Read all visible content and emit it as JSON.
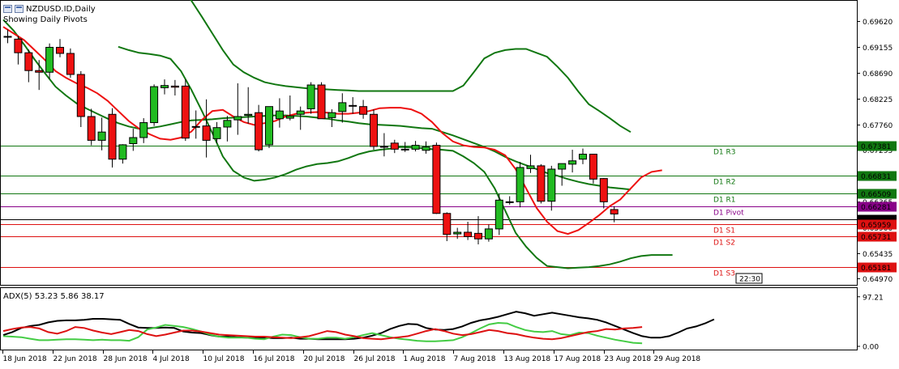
{
  "window": {
    "title": "NZDUSD.ID,Daily",
    "subtitle": "Showing Daily Pivots",
    "clock": "22:30"
  },
  "colors": {
    "bull": "#22bb22",
    "bear": "#ee1111",
    "candle_outline": "#000000",
    "bands": "#117711",
    "ma": "#ee1111",
    "resistance": "#117711",
    "support": "#dd1111",
    "pivot": "#880088",
    "adx": "#000000",
    "plus_di": "#44cc44",
    "minus_di": "#dd1111"
  },
  "chart_data": [
    {
      "type": "candlestick",
      "name": "NZDUSD.ID,Daily",
      "ylim": [
        0.6486,
        0.6999
      ],
      "y_ticks": [
        "0.69620",
        "0.69155",
        "0.68690",
        "0.68225",
        "0.67760",
        "0.67295",
        "0.66830",
        "0.66365",
        "0.65900",
        "0.65435",
        "0.64970"
      ],
      "x_ticks": [
        "18 Jun 2018",
        "22 Jun 2018",
        "28 Jun 2018",
        "4 Jul 2018",
        "10 Jul 2018",
        "16 Jul 2018",
        "20 Jul 2018",
        "26 Jul 2018",
        "1 Aug 2018",
        "7 Aug 2018",
        "13 Aug 2018",
        "17 Aug 2018",
        "23 Aug 2018",
        "29 Aug 2018"
      ],
      "candles": [
        {
          "o": 0.69347,
          "h": 0.6947,
          "l": 0.69225,
          "c": 0.69347
        },
        {
          "o": 0.69298,
          "h": 0.6936,
          "l": 0.6884,
          "c": 0.69052
        },
        {
          "o": 0.69052,
          "h": 0.6911,
          "l": 0.6852,
          "c": 0.6873
        },
        {
          "o": 0.6873,
          "h": 0.6892,
          "l": 0.6838,
          "c": 0.687
        },
        {
          "o": 0.687,
          "h": 0.6922,
          "l": 0.6858,
          "c": 0.6915
        },
        {
          "o": 0.6915,
          "h": 0.693,
          "l": 0.6897,
          "c": 0.6904
        },
        {
          "o": 0.6904,
          "h": 0.6913,
          "l": 0.686,
          "c": 0.6866
        },
        {
          "o": 0.6866,
          "h": 0.6872,
          "l": 0.6771,
          "c": 0.679
        },
        {
          "o": 0.679,
          "h": 0.6804,
          "l": 0.6738,
          "c": 0.6747
        },
        {
          "o": 0.6747,
          "h": 0.6788,
          "l": 0.6729,
          "c": 0.6762
        },
        {
          "o": 0.6794,
          "h": 0.6805,
          "l": 0.6698,
          "c": 0.6713
        },
        {
          "o": 0.6713,
          "h": 0.674,
          "l": 0.6705,
          "c": 0.6739
        },
        {
          "o": 0.6741,
          "h": 0.6768,
          "l": 0.6728,
          "c": 0.6752
        },
        {
          "o": 0.6752,
          "h": 0.6787,
          "l": 0.6742,
          "c": 0.6779
        },
        {
          "o": 0.6779,
          "h": 0.6848,
          "l": 0.6773,
          "c": 0.6844
        },
        {
          "o": 0.6842,
          "h": 0.6857,
          "l": 0.683,
          "c": 0.6846
        },
        {
          "o": 0.6845,
          "h": 0.6856,
          "l": 0.6828,
          "c": 0.6843
        },
        {
          "o": 0.6845,
          "h": 0.6857,
          "l": 0.6746,
          "c": 0.6751
        },
        {
          "o": 0.6772,
          "h": 0.6801,
          "l": 0.675,
          "c": 0.6772
        },
        {
          "o": 0.6773,
          "h": 0.6821,
          "l": 0.6716,
          "c": 0.6747
        },
        {
          "o": 0.675,
          "h": 0.678,
          "l": 0.6742,
          "c": 0.677
        },
        {
          "o": 0.6771,
          "h": 0.6791,
          "l": 0.6745,
          "c": 0.6783
        },
        {
          "o": 0.6784,
          "h": 0.685,
          "l": 0.6757,
          "c": 0.679
        },
        {
          "o": 0.6792,
          "h": 0.6843,
          "l": 0.6777,
          "c": 0.6794
        },
        {
          "o": 0.6797,
          "h": 0.6811,
          "l": 0.6727,
          "c": 0.673
        },
        {
          "o": 0.6739,
          "h": 0.6808,
          "l": 0.6733,
          "c": 0.6808
        },
        {
          "o": 0.6786,
          "h": 0.6823,
          "l": 0.677,
          "c": 0.68
        },
        {
          "o": 0.6787,
          "h": 0.6828,
          "l": 0.6783,
          "c": 0.6791
        },
        {
          "o": 0.6794,
          "h": 0.6808,
          "l": 0.6766,
          "c": 0.68
        },
        {
          "o": 0.6804,
          "h": 0.6852,
          "l": 0.6795,
          "c": 0.6847
        },
        {
          "o": 0.6847,
          "h": 0.6852,
          "l": 0.6786,
          "c": 0.6786
        },
        {
          "o": 0.6788,
          "h": 0.6803,
          "l": 0.6771,
          "c": 0.6797
        },
        {
          "o": 0.6799,
          "h": 0.6832,
          "l": 0.6779,
          "c": 0.6815
        },
        {
          "o": 0.681,
          "h": 0.6825,
          "l": 0.6795,
          "c": 0.6809
        },
        {
          "o": 0.6808,
          "h": 0.682,
          "l": 0.6786,
          "c": 0.6794
        },
        {
          "o": 0.6794,
          "h": 0.6803,
          "l": 0.673,
          "c": 0.6736
        },
        {
          "o": 0.6736,
          "h": 0.676,
          "l": 0.6718,
          "c": 0.6736
        },
        {
          "o": 0.6742,
          "h": 0.6748,
          "l": 0.6724,
          "c": 0.6731
        },
        {
          "o": 0.6731,
          "h": 0.6744,
          "l": 0.6726,
          "c": 0.6731
        },
        {
          "o": 0.6731,
          "h": 0.6746,
          "l": 0.6727,
          "c": 0.6738
        },
        {
          "o": 0.6729,
          "h": 0.6745,
          "l": 0.6723,
          "c": 0.6735
        },
        {
          "o": 0.6738,
          "h": 0.6743,
          "l": 0.6614,
          "c": 0.6615
        },
        {
          "o": 0.6615,
          "h": 0.6617,
          "l": 0.6565,
          "c": 0.6577
        },
        {
          "o": 0.6578,
          "h": 0.6589,
          "l": 0.6569,
          "c": 0.6581
        },
        {
          "o": 0.6581,
          "h": 0.66,
          "l": 0.6567,
          "c": 0.6573
        },
        {
          "o": 0.6579,
          "h": 0.661,
          "l": 0.6559,
          "c": 0.6569
        },
        {
          "o": 0.6569,
          "h": 0.6595,
          "l": 0.6564,
          "c": 0.6587
        },
        {
          "o": 0.6587,
          "h": 0.665,
          "l": 0.6576,
          "c": 0.6639
        },
        {
          "o": 0.6635,
          "h": 0.6646,
          "l": 0.6631,
          "c": 0.6636
        },
        {
          "o": 0.6636,
          "h": 0.6708,
          "l": 0.6626,
          "c": 0.6698
        },
        {
          "o": 0.6696,
          "h": 0.6721,
          "l": 0.6688,
          "c": 0.6701
        },
        {
          "o": 0.6701,
          "h": 0.6704,
          "l": 0.6633,
          "c": 0.6637
        },
        {
          "o": 0.6637,
          "h": 0.6701,
          "l": 0.662,
          "c": 0.6695
        },
        {
          "o": 0.6695,
          "h": 0.6705,
          "l": 0.6665,
          "c": 0.6705
        },
        {
          "o": 0.6704,
          "h": 0.673,
          "l": 0.6689,
          "c": 0.671
        },
        {
          "o": 0.6713,
          "h": 0.6732,
          "l": 0.6704,
          "c": 0.6722
        },
        {
          "o": 0.6722,
          "h": 0.672,
          "l": 0.6669,
          "c": 0.6677
        },
        {
          "o": 0.6678,
          "h": 0.6679,
          "l": 0.6624,
          "c": 0.6636
        },
        {
          "o": 0.6622,
          "h": 0.6628,
          "l": 0.6599,
          "c": 0.6614
        }
      ],
      "bands_upper": [
        0.703,
        0.703,
        0.703,
        0.703,
        0.703,
        0.703,
        0.703,
        0.703,
        0.703,
        0.703,
        0.703,
        0.703,
        0.703,
        0.703,
        0.703,
        0.703,
        0.703,
        0.703,
        0.6999,
        0.697,
        0.694,
        0.691,
        0.6884,
        0.687,
        0.686,
        0.6852,
        0.6848,
        0.6845,
        0.6843,
        0.6841,
        0.684,
        0.6839,
        0.6838,
        0.6837,
        0.6836,
        0.6836,
        0.6836,
        0.6836,
        0.6836,
        0.6836,
        0.6836,
        0.6836,
        0.6836,
        0.6836,
        0.6846,
        0.687,
        0.6895,
        0.6905,
        0.691,
        0.6912,
        0.6912,
        0.6905,
        0.6898,
        0.688,
        0.686,
        0.6835,
        0.6812,
        0.68,
        0.6787,
        0.6773,
        0.6762
      ],
      "bands_middle": [
        0.6965,
        0.6945,
        0.692,
        0.6893,
        0.6868,
        0.6844,
        0.6828,
        0.6814,
        0.6804,
        0.6795,
        0.6786,
        0.6778,
        0.6772,
        0.6768,
        0.6769,
        0.6772,
        0.6776,
        0.678,
        0.6783,
        0.6784,
        0.6785,
        0.6787,
        0.6788,
        0.6789,
        0.679,
        0.6791,
        0.6792,
        0.6792,
        0.6791,
        0.679,
        0.6788,
        0.6786,
        0.6783,
        0.6781,
        0.6778,
        0.6776,
        0.6775,
        0.6774,
        0.6773,
        0.6771,
        0.6769,
        0.6768,
        0.6762,
        0.6756,
        0.6749,
        0.6742,
        0.6735,
        0.6727,
        0.6717,
        0.6709,
        0.6702,
        0.6695,
        0.6688,
        0.6683,
        0.6677,
        0.6672,
        0.6668,
        0.6665,
        0.6662,
        0.666,
        0.6658
      ],
      "bands_lower": [
        0.6916,
        0.691,
        0.6905,
        0.6903,
        0.69,
        0.6894,
        0.6872,
        0.6838,
        0.68,
        0.676,
        0.6718,
        0.6692,
        0.668,
        0.6674,
        0.6676,
        0.668,
        0.6686,
        0.6694,
        0.67,
        0.6704,
        0.6706,
        0.6709,
        0.6715,
        0.6722,
        0.6727,
        0.673,
        0.6732,
        0.6735,
        0.6734,
        0.6733,
        0.6731,
        0.673,
        0.6728,
        0.6718,
        0.6706,
        0.669,
        0.666,
        0.662,
        0.658,
        0.6555,
        0.6535,
        0.652,
        0.6518,
        0.6516,
        0.6517,
        0.6518,
        0.652,
        0.6523,
        0.6528,
        0.6534,
        0.6538,
        0.654,
        0.654,
        0.654
      ],
      "ma": [
        0.6952,
        0.694,
        0.6928,
        0.691,
        0.6892,
        0.6872,
        0.686,
        0.685,
        0.6842,
        0.6832,
        0.6818,
        0.68,
        0.6782,
        0.6768,
        0.6758,
        0.675,
        0.6748,
        0.6752,
        0.6763,
        0.6784,
        0.68,
        0.6802,
        0.679,
        0.678,
        0.6775,
        0.6778,
        0.6782,
        0.679,
        0.6795,
        0.6797,
        0.6798,
        0.6797,
        0.6795,
        0.6795,
        0.6797,
        0.68,
        0.6805,
        0.6806,
        0.6806,
        0.6803,
        0.6795,
        0.678,
        0.676,
        0.6745,
        0.6738,
        0.6735,
        0.6734,
        0.673,
        0.672,
        0.6695,
        0.666,
        0.6625,
        0.66,
        0.6583,
        0.6578,
        0.6585,
        0.6598,
        0.6612,
        0.6628,
        0.664,
        0.666,
        0.668,
        0.669,
        0.6693,
        0.6693,
        0.6692,
        0.669,
        0.6685,
        0.6672
      ],
      "levels": [
        {
          "label": "D1 R3",
          "value": 0.67381,
          "price": "0.67381",
          "kind": "resistance"
        },
        {
          "label": "D1 R2",
          "value": 0.66831,
          "price": "0.66831",
          "kind": "resistance"
        },
        {
          "label": "D1 R1",
          "value": 0.66509,
          "price": "0.66509",
          "kind": "resistance"
        },
        {
          "label": "D1 Pivot",
          "value": 0.66281,
          "price": "0.66281",
          "kind": "pivot"
        },
        {
          "label": "",
          "value": 0.66042,
          "price": "0.66042",
          "kind": "current"
        },
        {
          "label": "D1 S1",
          "value": 0.65959,
          "price": "0.65959",
          "kind": "support"
        },
        {
          "label": "D1 S2",
          "value": 0.65731,
          "price": "0.65731",
          "kind": "support"
        },
        {
          "label": "D1 S3",
          "value": 0.65181,
          "price": "0.65181",
          "kind": "support"
        }
      ]
    },
    {
      "type": "line",
      "name": "ADX(5) 53.23 5.86 38.17",
      "ylim": [
        0,
        100
      ],
      "y_ticks": [
        "97.21",
        "0.00"
      ],
      "series": [
        {
          "name": "ADX",
          "values": [
            22,
            28,
            36,
            40,
            42,
            47,
            50,
            51,
            51,
            52,
            54,
            54,
            53,
            52,
            44,
            37,
            36,
            36,
            37,
            36,
            29,
            27,
            26,
            22,
            19,
            19,
            18,
            17,
            17,
            17,
            16,
            16,
            17,
            15,
            15,
            14,
            14,
            14,
            14,
            15,
            17,
            21,
            26,
            34,
            40,
            44,
            43,
            36,
            33,
            32,
            34,
            39,
            46,
            51,
            54,
            58,
            63,
            68,
            65,
            60,
            63,
            66,
            63,
            60,
            57,
            55,
            52,
            47,
            40,
            33,
            26,
            20,
            17,
            17,
            20,
            27,
            35,
            39,
            45,
            53
          ]
        },
        {
          "name": "+DI",
          "values": [
            20,
            19,
            18,
            15,
            12,
            12,
            13,
            14,
            14,
            13,
            12,
            13,
            12,
            12,
            11,
            18,
            33,
            37,
            42,
            40,
            38,
            34,
            29,
            23,
            19,
            17,
            17,
            17,
            15,
            14,
            19,
            23,
            22,
            18,
            15,
            15,
            17,
            17,
            15,
            18,
            22,
            26,
            22,
            18,
            15,
            13,
            11,
            10,
            10,
            11,
            12,
            18,
            26,
            35,
            43,
            46,
            45,
            38,
            32,
            29,
            28,
            30,
            24,
            22,
            27,
            26,
            21,
            17,
            13,
            10,
            7,
            6
          ]
        },
        {
          "name": "-DI",
          "values": [
            30,
            34,
            37,
            38,
            35,
            28,
            25,
            30,
            38,
            36,
            31,
            27,
            24,
            28,
            32,
            30,
            24,
            20,
            23,
            27,
            31,
            31,
            29,
            26,
            23,
            22,
            21,
            20,
            19,
            19,
            18,
            17,
            16,
            18,
            20,
            25,
            30,
            28,
            23,
            20,
            16,
            15,
            14,
            16,
            18,
            20,
            25,
            30,
            34,
            30,
            25,
            22,
            24,
            28,
            32,
            30,
            26,
            24,
            20,
            17,
            15,
            14,
            16,
            20,
            24,
            28,
            30,
            34,
            33,
            35,
            36,
            38
          ]
        }
      ]
    }
  ]
}
